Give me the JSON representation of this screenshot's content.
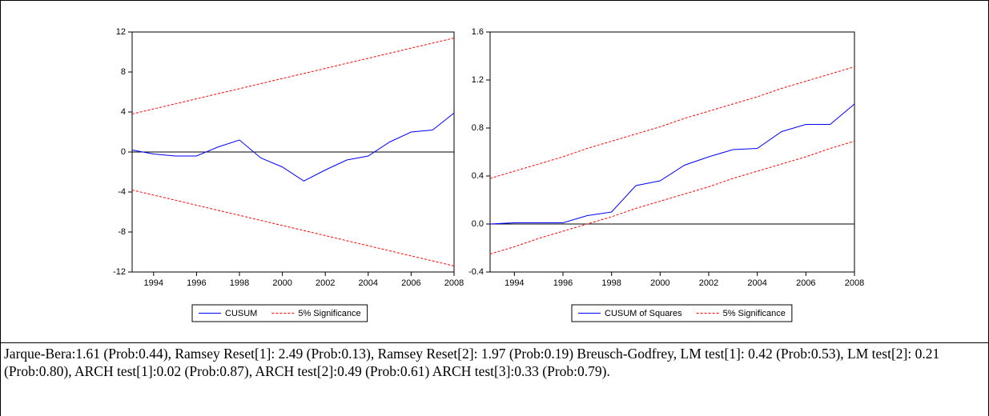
{
  "chart_data": [
    {
      "type": "line",
      "x": [
        1993,
        1994,
        1995,
        1996,
        1997,
        1998,
        1999,
        2000,
        2001,
        2002,
        2003,
        2004,
        2005,
        2006,
        2007,
        2008
      ],
      "xlim": [
        1993,
        2008
      ],
      "xticks": [
        1994,
        1996,
        1998,
        2000,
        2002,
        2004,
        2006,
        2008
      ],
      "ylim": [
        -12,
        12
      ],
      "yticks": [
        -12,
        -8,
        -4,
        0,
        4,
        8,
        12
      ],
      "series": [
        {
          "name": "CUSUM",
          "color": "#0000ff",
          "values": [
            0.2,
            -0.2,
            -0.4,
            -0.4,
            0.5,
            1.2,
            -0.6,
            -1.5,
            -2.9,
            -1.8,
            -0.8,
            -0.4,
            1.0,
            2.0,
            2.2,
            3.9
          ]
        },
        {
          "name": "5% Significance",
          "color": "#ff0000",
          "dashed": true,
          "values": [
            3.8,
            4.31,
            4.81,
            5.32,
            5.83,
            6.33,
            6.84,
            7.35,
            7.85,
            8.36,
            8.87,
            9.37,
            9.88,
            10.39,
            10.89,
            11.4
          ],
          "lower": [
            -3.8,
            -4.31,
            -4.81,
            -5.32,
            -5.83,
            -6.33,
            -6.84,
            -7.35,
            -7.85,
            -8.36,
            -8.87,
            -9.37,
            -9.88,
            -10.39,
            -10.89,
            -11.4
          ]
        }
      ]
    },
    {
      "type": "line",
      "x": [
        1993,
        1994,
        1995,
        1996,
        1997,
        1998,
        1999,
        2000,
        2001,
        2002,
        2003,
        2004,
        2005,
        2006,
        2007,
        2008
      ],
      "xlim": [
        1993,
        2008
      ],
      "xticks": [
        1994,
        1996,
        1998,
        2000,
        2002,
        2004,
        2006,
        2008
      ],
      "ylim": [
        -0.4,
        1.6
      ],
      "yticks": [
        -0.4,
        {
          "value": 0,
          "label": "0.0"
        },
        0.4,
        0.8,
        1.2,
        1.6
      ],
      "series": [
        {
          "name": "CUSUM of Squares",
          "color": "#0000ff",
          "values": [
            0,
            0.01,
            0.01,
            0.01,
            0.07,
            0.1,
            0.32,
            0.36,
            0.49,
            0.56,
            0.62,
            0.63,
            0.77,
            0.83,
            0.83,
            1.0
          ]
        },
        {
          "name": "5% Significance",
          "color": "#ff0000",
          "dashed": true,
          "values": [
            0.38,
            0.44,
            0.5,
            0.56,
            0.63,
            0.69,
            0.75,
            0.81,
            0.88,
            0.94,
            1.0,
            1.06,
            1.13,
            1.19,
            1.25,
            1.31
          ],
          "lower": [
            -0.25,
            -0.19,
            -0.12,
            -0.06,
            0.0,
            0.06,
            0.13,
            0.19,
            0.25,
            0.31,
            0.38,
            0.44,
            0.5,
            0.56,
            0.63,
            0.69
          ]
        }
      ]
    }
  ],
  "caption": "Jarque-Bera:1.61 (Prob:0.44), Ramsey Reset[1]: 2.49 (Prob:0.13), Ramsey Reset[2]: 1.97 (Prob:0.19) Breusch-Godfrey, LM test[1]: 0.42 (Prob:0.53), LM test[2]: 0.21 (Prob:0.80), ARCH test[1]:0.02 (Prob:0.87), ARCH test[2]:0.49 (Prob:0.61) ARCH test[3]:0.33 (Prob:0.79)."
}
